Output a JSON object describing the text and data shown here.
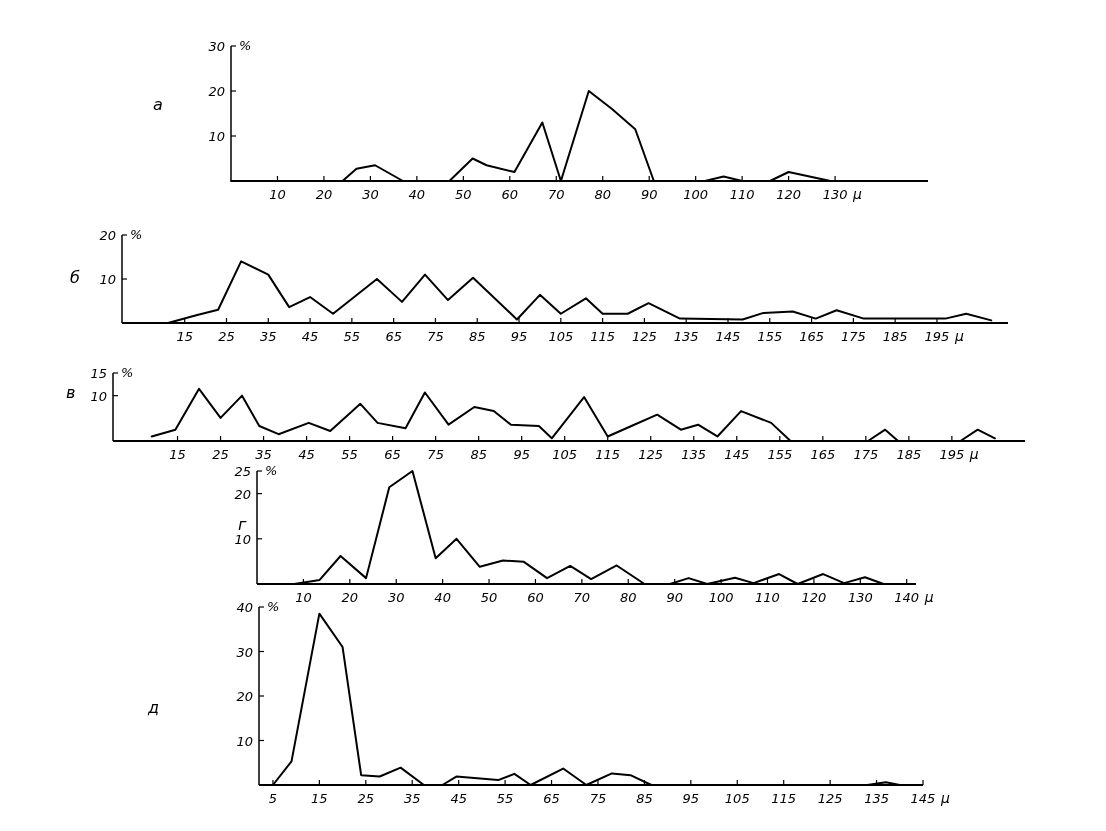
{
  "chart_data": [
    {
      "type": "line",
      "title": "а",
      "xlabel": "μ",
      "ylabel": "%",
      "xlim": [
        0,
        150
      ],
      "xticks": [
        10,
        20,
        30,
        40,
        50,
        60,
        70,
        80,
        90,
        100,
        110,
        120,
        130
      ],
      "ylim": [
        0,
        30
      ],
      "yticks": [
        10,
        20,
        30
      ],
      "series": [
        {
          "color": "#000000",
          "x": [
            0,
            24,
            27,
            31,
            37,
            47,
            52,
            55,
            61,
            67,
            71,
            77,
            82,
            87,
            91,
            102,
            106,
            110,
            116,
            120,
            129
          ],
          "values": [
            0,
            0,
            2.7,
            3.5,
            0,
            0,
            5,
            3.5,
            2,
            13,
            0,
            20,
            16,
            11.5,
            0,
            0,
            1,
            0,
            0,
            2,
            0
          ]
        }
      ]
    },
    {
      "type": "line",
      "title": "б",
      "xlabel": "μ",
      "ylabel": "%",
      "xlim": [
        0,
        212
      ],
      "xticks": [
        15,
        25,
        35,
        45,
        55,
        65,
        75,
        85,
        95,
        105,
        115,
        125,
        135,
        145,
        155,
        165,
        175,
        185,
        195
      ],
      "ylim": [
        0,
        20
      ],
      "yticks": [
        10,
        20
      ],
      "series": [
        {
          "color": "#000000",
          "x": [
            11,
            18,
            23,
            28.5,
            35,
            40,
            45,
            50.5,
            61,
            67,
            72.5,
            78,
            84,
            94.5,
            100,
            105,
            111,
            115,
            121,
            126,
            133.5,
            148.5,
            153.5,
            160.5,
            166,
            171,
            177.5,
            197,
            202,
            208
          ],
          "values": [
            0,
            1.8,
            3,
            14,
            11,
            3.6,
            5.9,
            2.1,
            10,
            4.8,
            11,
            5.2,
            10.3,
            0.8,
            6.4,
            2.1,
            5.6,
            2.1,
            2.1,
            4.5,
            1,
            0.8,
            2.3,
            2.6,
            1,
            2.9,
            1,
            1,
            2.1,
            0.6
          ]
        }
      ]
    },
    {
      "type": "line",
      "title": "в",
      "xlabel": "μ",
      "ylabel": "%",
      "xlim": [
        0,
        212
      ],
      "xticks": [
        15,
        25,
        35,
        45,
        55,
        65,
        75,
        85,
        95,
        105,
        115,
        125,
        135,
        145,
        155,
        165,
        175,
        185,
        195
      ],
      "ylim": [
        0,
        15
      ],
      "yticks": [
        10,
        15
      ],
      "series": [
        {
          "color": "#000000",
          "x": [
            9,
            14.5,
            20,
            25,
            30,
            34,
            38.5,
            45.5,
            50.5,
            57.5,
            61.5,
            68,
            72.5,
            78,
            84,
            88.5,
            92.5,
            99,
            102,
            109.5,
            115,
            120.5,
            126.5,
            132,
            136,
            140.5,
            146,
            153,
            157.5,
            175.5,
            179.5,
            182.5,
            197,
            201,
            205
          ],
          "values": [
            1,
            2.5,
            11.5,
            5.1,
            10,
            3.3,
            1.5,
            4,
            2.2,
            8.2,
            4,
            2.8,
            10.7,
            3.6,
            7.5,
            6.6,
            3.6,
            3.3,
            0.6,
            9.7,
            1,
            3.3,
            5.8,
            2.5,
            3.6,
            1,
            6.6,
            4,
            0,
            0,
            2.5,
            0,
            0,
            2.5,
            0.6
          ]
        }
      ]
    },
    {
      "type": "line",
      "title": "г",
      "xlabel": "μ",
      "ylabel": "%",
      "xlim": [
        0,
        142
      ],
      "xticks": [
        10,
        20,
        30,
        40,
        50,
        60,
        70,
        80,
        90,
        100,
        110,
        120,
        130,
        140
      ],
      "ylim": [
        0,
        25
      ],
      "yticks": [
        10,
        20,
        25
      ],
      "series": [
        {
          "color": "#000000",
          "x": [
            8,
            13.5,
            18,
            23.5,
            28.5,
            33.5,
            38.5,
            43,
            48,
            53,
            57.5,
            62.5,
            67.5,
            72,
            77.5,
            83.5,
            89,
            93,
            97,
            103,
            107,
            112.5,
            116.5,
            122,
            126.5,
            131,
            135
          ],
          "values": [
            0,
            0.9,
            6.2,
            1.3,
            21.4,
            25,
            5.7,
            10,
            3.8,
            5.2,
            4.9,
            1.3,
            4,
            1.1,
            4.1,
            0,
            0,
            1.3,
            0,
            1.4,
            0.2,
            2.2,
            0,
            2.2,
            0.2,
            1.5,
            0
          ]
        }
      ]
    },
    {
      "type": "line",
      "title": "д",
      "xlabel": "μ",
      "ylabel": "%",
      "xlim": [
        2,
        145
      ],
      "xticks": [
        5,
        15,
        25,
        35,
        45,
        55,
        65,
        75,
        85,
        95,
        105,
        115,
        125,
        135,
        145
      ],
      "ylim": [
        0,
        40
      ],
      "yticks": [
        10,
        20,
        30,
        40
      ],
      "series": [
        {
          "color": "#000000",
          "x": [
            5,
            9,
            15,
            20,
            24,
            28,
            32.5,
            37.5,
            41.5,
            44.5,
            53.5,
            57,
            60.5,
            67.5,
            72.5,
            78,
            82,
            86.5,
            133,
            137,
            140
          ],
          "values": [
            0,
            5.3,
            38.5,
            31,
            2.2,
            1.9,
            3.9,
            0,
            0,
            1.9,
            1.1,
            2.5,
            0,
            3.7,
            0,
            2.6,
            2.2,
            0,
            0,
            0.6,
            0
          ]
        }
      ]
    }
  ]
}
